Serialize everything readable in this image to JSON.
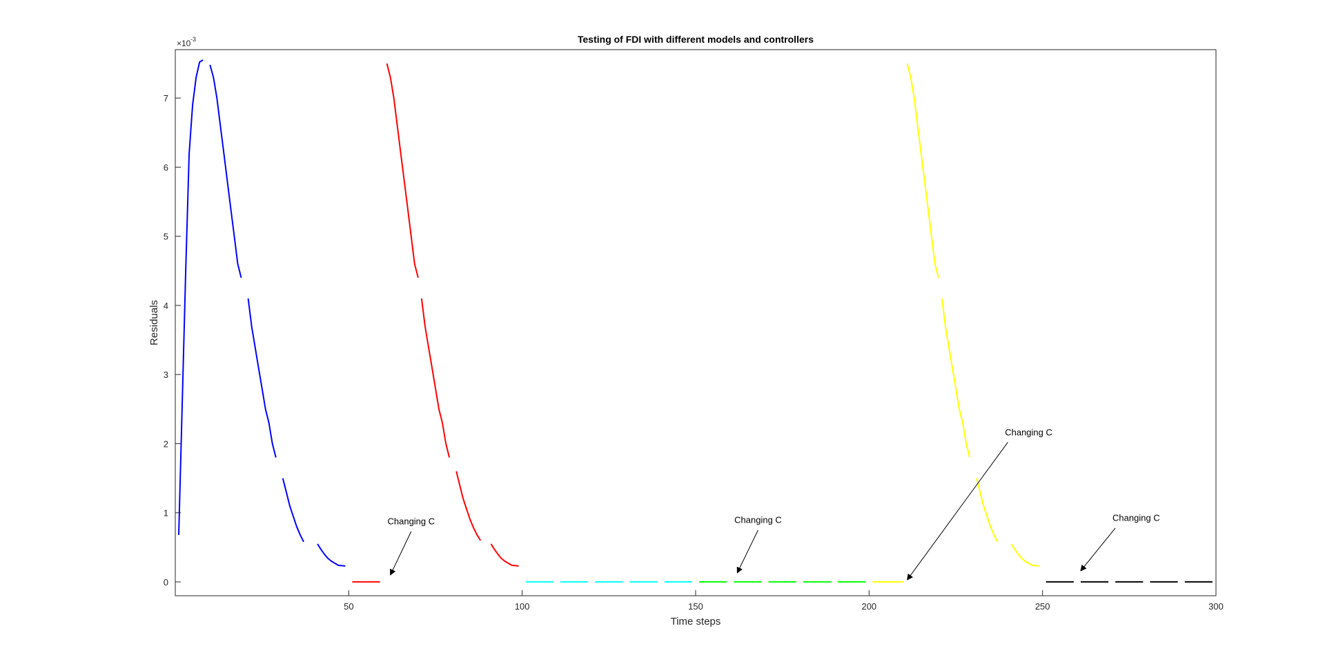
{
  "chart_data": {
    "type": "line",
    "title": "Testing of FDI with different models and controllers",
    "xlabel": "Time steps",
    "ylabel": "Residuals",
    "y_exponent_label": "×10",
    "y_exponent_power": "-3",
    "xlim": [
      0,
      300
    ],
    "ylim": [
      -0.0002,
      0.0077
    ],
    "x_ticks": [
      50,
      100,
      150,
      200,
      250,
      300
    ],
    "x_tick_labels": [
      "50",
      "100",
      "150",
      "200",
      "250",
      "300"
    ],
    "y_ticks": [
      0,
      0.001,
      0.002,
      0.003,
      0.004,
      0.005,
      0.006,
      0.007
    ],
    "y_tick_labels": [
      "0",
      "1",
      "2",
      "3",
      "4",
      "5",
      "6",
      "7"
    ],
    "grid": false,
    "legend": "none",
    "series": [
      {
        "color": "#0000ff",
        "segments": [
          [
            [
              1,
              0.00068
            ],
            [
              2,
              0.0026
            ],
            [
              3,
              0.0045
            ],
            [
              4,
              0.0062
            ],
            [
              5,
              0.0069
            ],
            [
              6,
              0.0073
            ],
            [
              7,
              0.00752
            ],
            [
              8,
              0.00755
            ]
          ],
          [
            [
              10,
              0.00748
            ],
            [
              11,
              0.0073
            ],
            [
              12,
              0.007
            ],
            [
              13,
              0.0066
            ],
            [
              14,
              0.0062
            ],
            [
              15,
              0.0058
            ],
            [
              16,
              0.0054
            ],
            [
              17,
              0.005
            ],
            [
              18,
              0.0046
            ],
            [
              19,
              0.0044
            ]
          ],
          [
            [
              21,
              0.0041
            ],
            [
              22,
              0.0037
            ],
            [
              23,
              0.0034
            ],
            [
              24,
              0.0031
            ],
            [
              25,
              0.0028
            ],
            [
              26,
              0.0025
            ],
            [
              27,
              0.0023
            ],
            [
              28,
              0.002
            ],
            [
              29,
              0.0018
            ]
          ],
          [
            [
              31,
              0.0015
            ],
            [
              32,
              0.0013
            ],
            [
              33,
              0.0011
            ],
            [
              34,
              0.00095
            ],
            [
              35,
              0.0008
            ],
            [
              36,
              0.00068
            ],
            [
              37,
              0.00058
            ]
          ],
          [
            [
              41,
              0.00055
            ],
            [
              42,
              0.00047
            ],
            [
              43,
              0.0004
            ],
            [
              44,
              0.00034
            ],
            [
              45,
              0.0003
            ],
            [
              46,
              0.00027
            ],
            [
              47,
              0.00024
            ],
            [
              49,
              0.00023
            ]
          ]
        ]
      },
      {
        "color": "#ff0000",
        "segments": [
          [
            [
              51,
              0
            ],
            [
              59,
              0
            ]
          ],
          [
            [
              61,
              0.0075
            ],
            [
              62,
              0.0073
            ],
            [
              63,
              0.007
            ],
            [
              64,
              0.0066
            ],
            [
              65,
              0.0062
            ],
            [
              66,
              0.0058
            ],
            [
              67,
              0.0054
            ],
            [
              68,
              0.005
            ],
            [
              69,
              0.0046
            ],
            [
              70,
              0.0044
            ]
          ],
          [
            [
              71,
              0.0041
            ],
            [
              72,
              0.0037
            ],
            [
              73,
              0.0034
            ],
            [
              74,
              0.0031
            ],
            [
              75,
              0.0028
            ],
            [
              76,
              0.0025
            ],
            [
              77,
              0.0023
            ],
            [
              78,
              0.002
            ],
            [
              79,
              0.0018
            ]
          ],
          [
            [
              81,
              0.0016
            ],
            [
              82,
              0.0014
            ],
            [
              83,
              0.0012
            ],
            [
              84,
              0.00105
            ],
            [
              85,
              0.0009
            ],
            [
              86,
              0.00078
            ],
            [
              87,
              0.00068
            ],
            [
              88,
              0.0006
            ]
          ],
          [
            [
              91,
              0.00055
            ],
            [
              92,
              0.00047
            ],
            [
              93,
              0.0004
            ],
            [
              94,
              0.00034
            ],
            [
              95,
              0.0003
            ],
            [
              96,
              0.00027
            ],
            [
              97,
              0.00024
            ],
            [
              99,
              0.00023
            ]
          ]
        ]
      },
      {
        "color": "#00ffff",
        "segments": [
          [
            [
              101,
              0
            ],
            [
              109,
              0
            ]
          ],
          [
            [
              111,
              0
            ],
            [
              119,
              0
            ]
          ],
          [
            [
              121,
              0
            ],
            [
              129,
              0
            ]
          ],
          [
            [
              131,
              0
            ],
            [
              139,
              0
            ]
          ],
          [
            [
              141,
              0
            ],
            [
              149,
              0
            ]
          ]
        ]
      },
      {
        "color": "#00ff00",
        "segments": [
          [
            [
              151,
              0
            ],
            [
              159,
              0
            ]
          ],
          [
            [
              161,
              0
            ],
            [
              169,
              0
            ]
          ],
          [
            [
              171,
              0
            ],
            [
              179,
              0
            ]
          ],
          [
            [
              181,
              0
            ],
            [
              189,
              0
            ]
          ],
          [
            [
              191,
              0
            ],
            [
              199,
              0
            ]
          ]
        ]
      },
      {
        "color": "#ffff00",
        "segments": [
          [
            [
              201,
              0
            ],
            [
              210,
              0
            ]
          ],
          [
            [
              211,
              0.0075
            ],
            [
              212,
              0.0073
            ],
            [
              213,
              0.007
            ],
            [
              214,
              0.0066
            ],
            [
              215,
              0.0062
            ],
            [
              216,
              0.0058
            ],
            [
              217,
              0.0054
            ],
            [
              218,
              0.005
            ],
            [
              219,
              0.0046
            ],
            [
              220,
              0.0044
            ]
          ],
          [
            [
              221,
              0.0041
            ],
            [
              222,
              0.0037
            ],
            [
              223,
              0.0034
            ],
            [
              224,
              0.0031
            ],
            [
              225,
              0.0028
            ],
            [
              226,
              0.0025
            ],
            [
              227,
              0.0023
            ],
            [
              228,
              0.002
            ],
            [
              229,
              0.0018
            ]
          ],
          [
            [
              231,
              0.0015
            ],
            [
              232,
              0.0013
            ],
            [
              233,
              0.0011
            ],
            [
              234,
              0.00095
            ],
            [
              235,
              0.0008
            ],
            [
              236,
              0.00068
            ],
            [
              237,
              0.00058
            ]
          ],
          [
            [
              241,
              0.00055
            ],
            [
              242,
              0.00047
            ],
            [
              243,
              0.0004
            ],
            [
              244,
              0.00034
            ],
            [
              245,
              0.0003
            ],
            [
              246,
              0.00027
            ],
            [
              247,
              0.00024
            ],
            [
              249,
              0.00023
            ]
          ]
        ]
      },
      {
        "color": "#000000",
        "segments": [
          [
            [
              251,
              0
            ],
            [
              259,
              0
            ]
          ],
          [
            [
              261,
              0
            ],
            [
              269,
              0
            ]
          ],
          [
            [
              271,
              0
            ],
            [
              279,
              0
            ]
          ],
          [
            [
              281,
              0
            ],
            [
              289,
              0
            ]
          ],
          [
            [
              291,
              0
            ],
            [
              299,
              0
            ]
          ]
        ]
      }
    ],
    "annotations": [
      {
        "text": "Changing C",
        "text_x": 68,
        "text_y": 0.00083,
        "arrow_from": [
          68,
          0.00073
        ],
        "arrow_to": [
          62,
          0.0001
        ]
      },
      {
        "text": "Changing C",
        "text_x": 168,
        "text_y": 0.00085,
        "arrow_from": [
          168,
          0.00075
        ],
        "arrow_to": [
          162,
          0.00013
        ]
      },
      {
        "text": "Changing C",
        "text_x": 246,
        "text_y": 0.00212,
        "arrow_from": [
          240,
          0.00202
        ],
        "arrow_to": [
          211,
          3e-05
        ]
      },
      {
        "text": "Changing C",
        "text_x": 277,
        "text_y": 0.00088,
        "arrow_from": [
          271,
          0.00078
        ],
        "arrow_to": [
          261,
          0.00016
        ]
      }
    ]
  }
}
